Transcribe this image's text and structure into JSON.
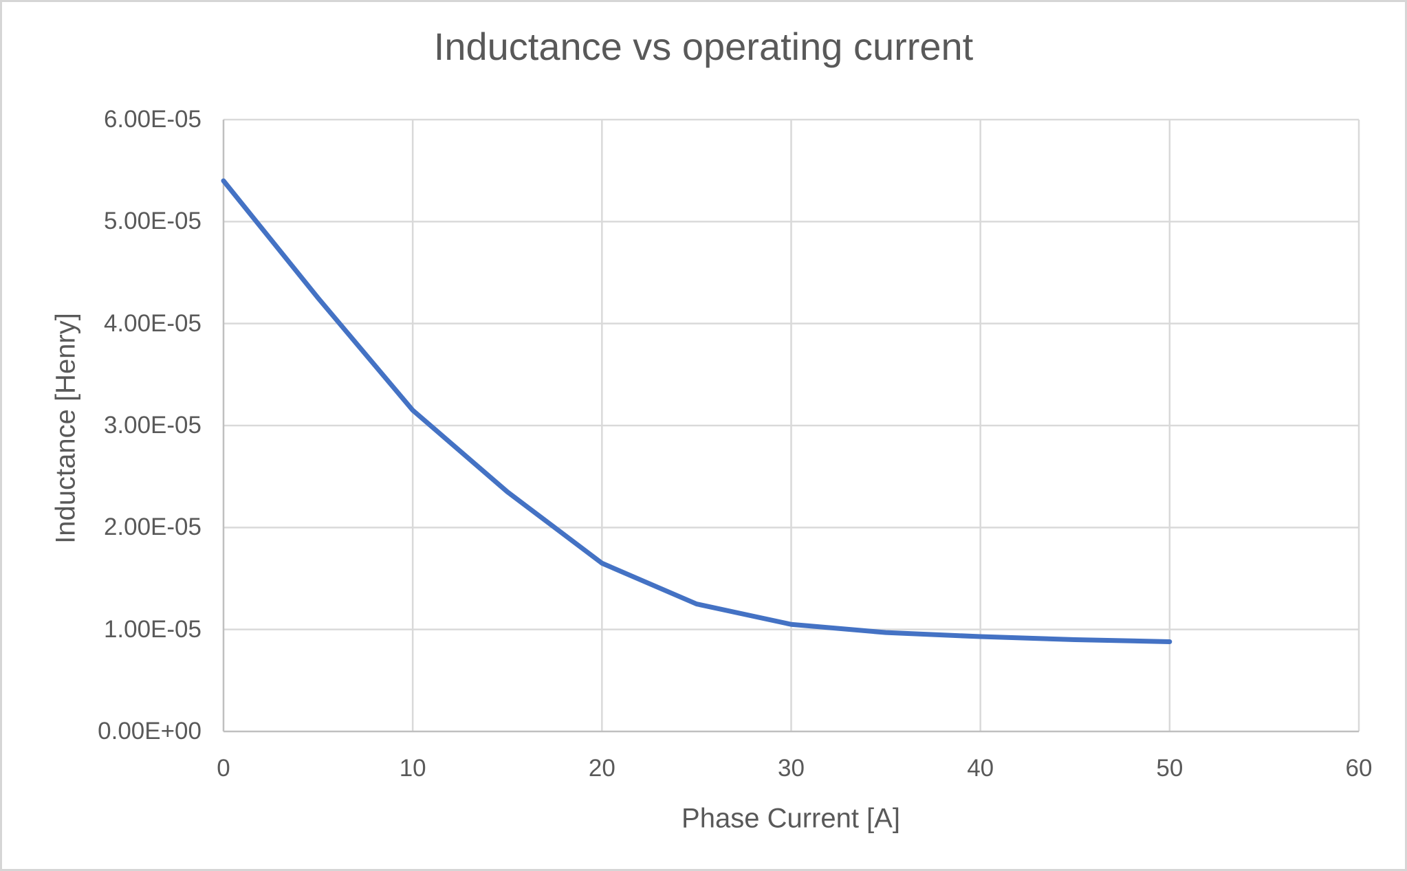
{
  "chart_data": {
    "type": "line",
    "title": "Inductance vs operating current",
    "xlabel": "Phase Current [A]",
    "ylabel": "Inductance [Henry]",
    "x": [
      0,
      5,
      10,
      15,
      20,
      25,
      30,
      35,
      40,
      45,
      50
    ],
    "series": [
      {
        "values": [
          5.4e-05,
          4.25e-05,
          3.15e-05,
          2.35e-05,
          1.65e-05,
          1.25e-05,
          1.05e-05,
          9.7e-06,
          9.3e-06,
          9e-06,
          8.8e-06
        ]
      }
    ],
    "xlim": [
      0,
      60
    ],
    "ylim": [
      0,
      6e-05
    ],
    "x_ticks": {
      "values": [
        0,
        10,
        20,
        30,
        40,
        50,
        60
      ],
      "labels": [
        "0",
        "10",
        "20",
        "30",
        "40",
        "50",
        "60"
      ]
    },
    "y_ticks": {
      "values": [
        0,
        1e-05,
        2e-05,
        3e-05,
        4e-05,
        5e-05,
        6e-05
      ],
      "labels": [
        "0.00E+00",
        "1.00E-05",
        "2.00E-05",
        "3.00E-05",
        "4.00E-05",
        "5.00E-05",
        "6.00E-05"
      ]
    },
    "grid": true,
    "legend": "none",
    "colors": {
      "line": "#4472C4",
      "grid": "#D9D9D9",
      "axis": "#BFBFBF",
      "text": "#595959"
    }
  }
}
